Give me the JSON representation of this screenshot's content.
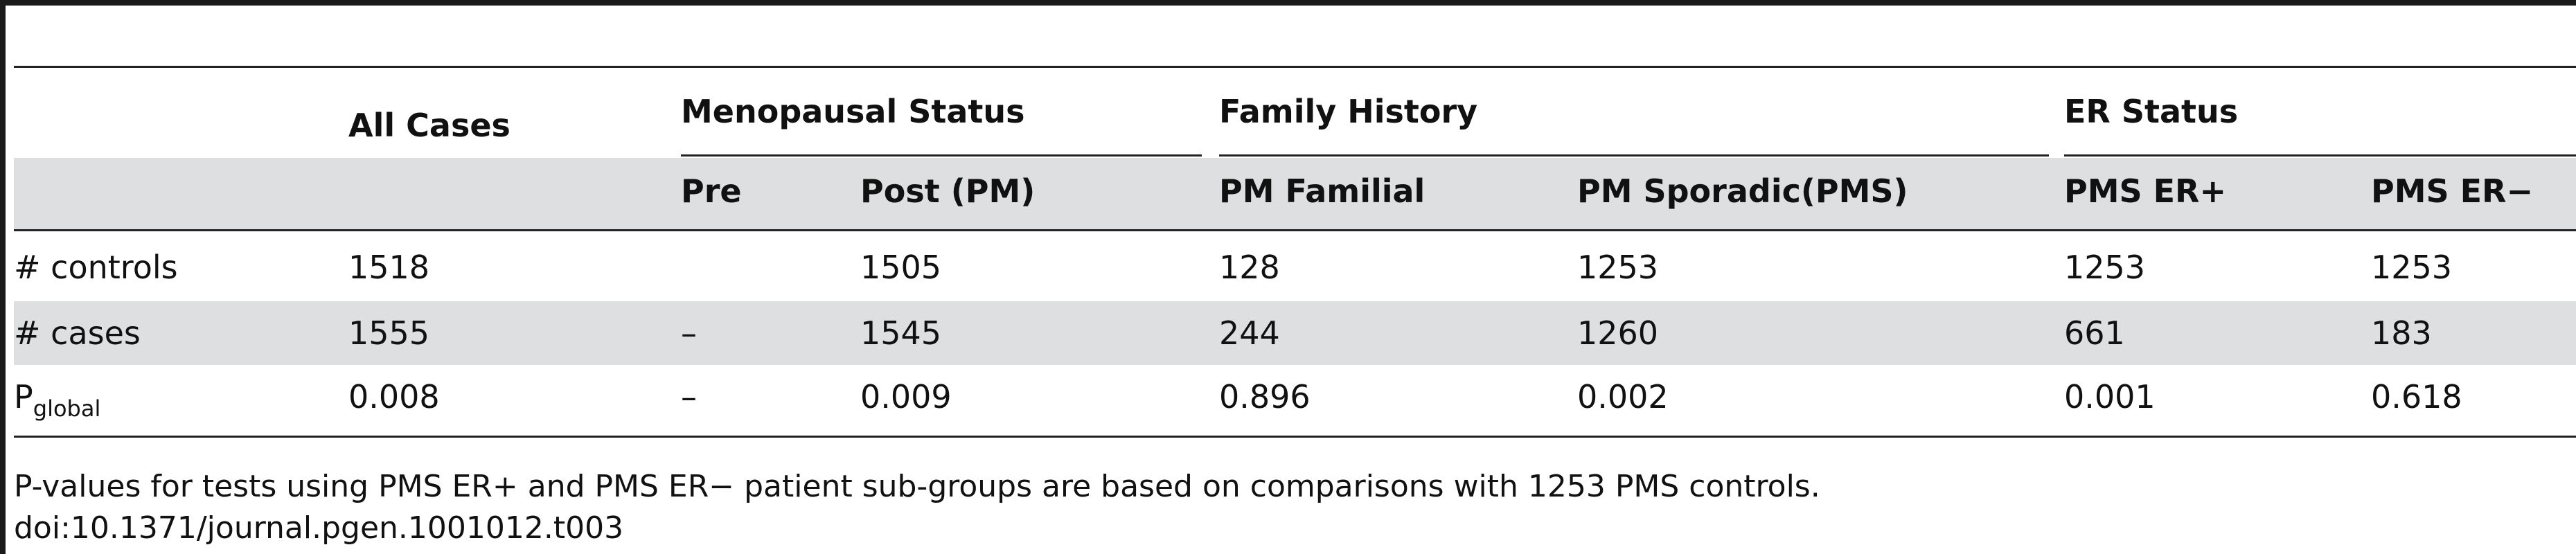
{
  "table": {
    "group_headers": {
      "all_cases": "All Cases",
      "menopausal": "Menopausal Status",
      "family": "Family History",
      "er": "ER Status"
    },
    "sub_headers": {
      "pre": "Pre",
      "post": "Post (PM)",
      "pm_familial": "PM Familial",
      "pm_sporadic": "PM Sporadic(PMS)",
      "pms_er_pos": "PMS ER+",
      "pms_er_neg": "PMS ER−"
    },
    "rows": [
      {
        "label": "# controls",
        "values": [
          "1518",
          "",
          "1505",
          "128",
          "1253",
          "1253",
          "1253"
        ]
      },
      {
        "label": "# cases",
        "values": [
          "1555",
          "–",
          "1545",
          "244",
          "1260",
          "661",
          "183"
        ]
      },
      {
        "label_main": "P",
        "label_sub": "global",
        "values": [
          "0.008",
          "–",
          "0.009",
          "0.896",
          "0.002",
          "0.001",
          "0.618"
        ]
      }
    ]
  },
  "footnote": "P-values for tests using PMS ER+ and PMS ER−  patient sub-groups are based on comparisons with 1253 PMS controls.",
  "doi": "doi:10.1371/journal.pgen.1001012.t003"
}
